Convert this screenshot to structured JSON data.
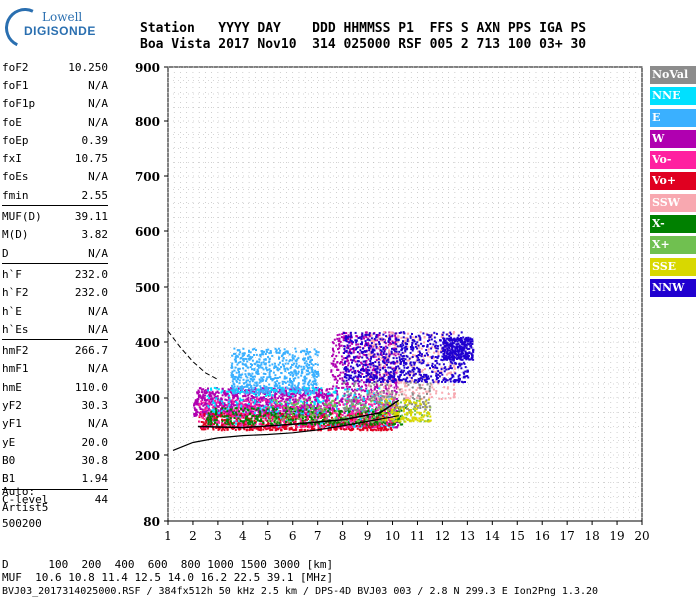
{
  "logo": {
    "line1": "Lowell",
    "line2": "DIGISONDE"
  },
  "header": {
    "line1": "Station   YYYY DAY    DDD HHMMSS P1  FFS S AXN PPS IGA PS",
    "line2": "Boa Vista 2017 Nov10  314 025000 RSF 005 2 713 100 03+ 30"
  },
  "params": [
    {
      "group": [
        {
          "label": "foF2",
          "value": "10.250"
        },
        {
          "label": "foF1",
          "value": "N/A"
        },
        {
          "label": "foF1p",
          "value": "N/A"
        },
        {
          "label": "foE",
          "value": "N/A"
        },
        {
          "label": "foEp",
          "value": "0.39"
        },
        {
          "label": "fxI",
          "value": "10.75"
        },
        {
          "label": "foEs",
          "value": "N/A"
        },
        {
          "label": "fmin",
          "value": "2.55"
        }
      ]
    },
    {
      "group": [
        {
          "label": "MUF(D)",
          "value": "39.11"
        },
        {
          "label": "M(D)",
          "value": "3.82"
        },
        {
          "label": "D",
          "value": "N/A"
        }
      ]
    },
    {
      "group": [
        {
          "label": "h`F",
          "value": "232.0"
        },
        {
          "label": "h`F2",
          "value": "232.0"
        },
        {
          "label": "h`E",
          "value": "N/A"
        },
        {
          "label": "h`Es",
          "value": "N/A"
        }
      ]
    },
    {
      "group": [
        {
          "label": "hmF2",
          "value": "266.7"
        },
        {
          "label": "hmF1",
          "value": "N/A"
        },
        {
          "label": "hmE",
          "value": "110.0"
        },
        {
          "label": "yF2",
          "value": "30.3"
        },
        {
          "label": "yF1",
          "value": "N/A"
        },
        {
          "label": "yE",
          "value": "20.0"
        },
        {
          "label": "B0",
          "value": "30.8"
        },
        {
          "label": "B1",
          "value": "1.94"
        }
      ]
    },
    {
      "group": [
        {
          "label": "C-level",
          "value": "44"
        }
      ]
    }
  ],
  "scaling": {
    "line1": "Auto:",
    "line2": "Artist5",
    "line3": "500200"
  },
  "legend": [
    {
      "label": "NoVal",
      "color": "#8c8c8c"
    },
    {
      "label": "NNE",
      "color": "#00e0ff"
    },
    {
      "label": "E",
      "color": "#3ab0ff"
    },
    {
      "label": "W",
      "color": "#b000b0"
    },
    {
      "label": "Vo-",
      "color": "#ff20a0"
    },
    {
      "label": "Vo+",
      "color": "#e00020"
    },
    {
      "label": "SSW",
      "color": "#f8a8b0"
    },
    {
      "label": "X-",
      "color": "#008000"
    },
    {
      "label": "X+",
      "color": "#70c050"
    },
    {
      "label": "SSE",
      "color": "#d8d800"
    },
    {
      "label": "NNW",
      "color": "#2000d0"
    }
  ],
  "footer": {
    "line1": "D      100  200  400  600  800 1000 1500 3000 [km]",
    "line2": "MUF  10.6 10.8 11.4 12.5 14.0 16.2 22.5 39.1 [MHz]",
    "line3": "BVJ03_2017314025000.RSF / 384fx512h 50 kHz 2.5 km / DPS-4D BVJ03 003 / 2.8 N 299.3 E Ion2Png 1.3.20"
  },
  "chart_data": {
    "type": "scatter",
    "x_range": [
      1,
      20
    ],
    "y_range": [
      80,
      900
    ],
    "x_ticks": [
      "1",
      "2",
      "3",
      "4",
      "5",
      "6",
      "7",
      "8",
      "9",
      "10",
      "11",
      "12",
      "13",
      "14",
      "15",
      "16",
      "17",
      "18",
      "19",
      "20"
    ],
    "y_ticks": [
      "80",
      "200",
      "300",
      "400",
      "500",
      "600",
      "700",
      "800",
      "900"
    ],
    "y_tick_values": [
      80,
      200,
      300,
      400,
      500,
      600,
      700,
      800,
      900
    ],
    "grid": true,
    "x_minor_step": 0.25,
    "clusters": [
      {
        "series": "W",
        "x": [
          2.0,
          7.5
        ],
        "y": [
          270,
          320
        ],
        "count": 1100
      },
      {
        "series": "W",
        "x": [
          7.5,
          10.2
        ],
        "y": [
          250,
          420
        ],
        "count": 700
      },
      {
        "series": "E",
        "x": [
          3.5,
          7.0
        ],
        "y": [
          310,
          390
        ],
        "count": 650
      },
      {
        "series": "NNE",
        "x": [
          2.5,
          10.0
        ],
        "y": [
          250,
          320
        ],
        "count": 450
      },
      {
        "series": "Vo+",
        "x": [
          2.2,
          10.0
        ],
        "y": [
          245,
          275
        ],
        "count": 650
      },
      {
        "series": "Vo-",
        "x": [
          2.2,
          10.0
        ],
        "y": [
          250,
          300
        ],
        "count": 400
      },
      {
        "series": "SSW",
        "x": [
          9.0,
          12.5
        ],
        "y": [
          300,
          420
        ],
        "count": 350
      },
      {
        "series": "NNW",
        "x": [
          8.0,
          13.0
        ],
        "y": [
          330,
          420
        ],
        "count": 750
      },
      {
        "series": "NNW",
        "x": [
          12.0,
          13.2
        ],
        "y": [
          370,
          410
        ],
        "count": 250
      },
      {
        "series": "X-",
        "x": [
          2.5,
          10.5
        ],
        "y": [
          255,
          285
        ],
        "count": 350
      },
      {
        "series": "X+",
        "x": [
          5.0,
          11.5
        ],
        "y": [
          260,
          300
        ],
        "count": 200
      },
      {
        "series": "SSE",
        "x": [
          9.5,
          11.5
        ],
        "y": [
          260,
          300
        ],
        "count": 150
      },
      {
        "series": "NoVal",
        "x": [
          8.0,
          11.5
        ],
        "y": [
          280,
          330
        ],
        "count": 150
      }
    ],
    "trace": {
      "x": [
        2.2,
        4,
        6,
        8,
        9.5,
        10.25
      ],
      "y": [
        250,
        248,
        254,
        262,
        274,
        296
      ]
    },
    "ionogram_curve": {
      "x": [
        1.2,
        2,
        3,
        4,
        5,
        6,
        7,
        8,
        9,
        10.25
      ],
      "y": [
        208,
        222,
        230,
        234,
        236,
        239,
        244,
        251,
        259,
        269
      ]
    },
    "profile_bound": {
      "x": [
        1.0,
        1.5,
        2.0,
        2.5,
        3.0
      ],
      "y": [
        420,
        390,
        365,
        345,
        333
      ]
    }
  }
}
